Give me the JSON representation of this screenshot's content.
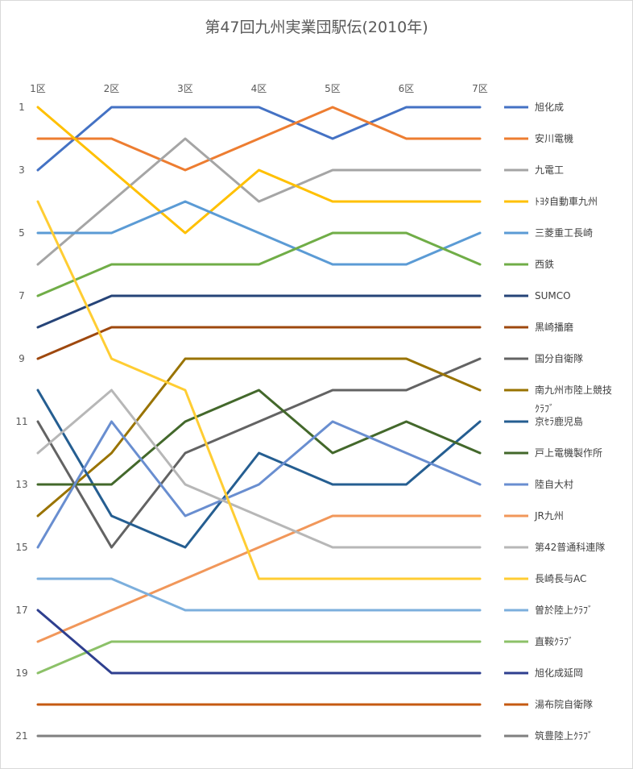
{
  "chart_data": {
    "type": "line",
    "title": "第47回九州実業団駅伝(2010年)",
    "x": [
      "1区",
      "2区",
      "3区",
      "4区",
      "5区",
      "6区",
      "7区"
    ],
    "y_ticks": [
      "1",
      "3",
      "5",
      "7",
      "9",
      "11",
      "13",
      "15",
      "17",
      "19",
      "21"
    ],
    "ylim": [
      1,
      21
    ],
    "y_reversed": true,
    "grid": false,
    "legend_position": "right",
    "series": [
      {
        "name": "旭化成",
        "color": "#4472C4",
        "values": [
          3,
          1,
          1,
          1,
          2,
          1,
          1
        ]
      },
      {
        "name": "安川電機",
        "color": "#ED7D31",
        "values": [
          2,
          2,
          3,
          2,
          1,
          2,
          2
        ]
      },
      {
        "name": "九電工",
        "color": "#A5A5A5",
        "values": [
          6,
          4,
          2,
          4,
          3,
          3,
          3
        ]
      },
      {
        "name": "ﾄﾖﾀ自動車九州",
        "color": "#FFC000",
        "values": [
          1,
          3,
          5,
          3,
          4,
          4,
          4
        ]
      },
      {
        "name": "三菱重工長崎",
        "color": "#5B9BD5",
        "values": [
          5,
          5,
          4,
          5,
          6,
          6,
          5
        ]
      },
      {
        "name": "西鉄",
        "color": "#70AD47",
        "values": [
          7,
          6,
          6,
          6,
          5,
          5,
          6
        ]
      },
      {
        "name": "SUMCO",
        "color": "#264478",
        "values": [
          8,
          7,
          7,
          7,
          7,
          7,
          7
        ]
      },
      {
        "name": "黒崎播磨",
        "color": "#9E480E",
        "values": [
          9,
          8,
          8,
          8,
          8,
          8,
          8
        ]
      },
      {
        "name": "国分自衛隊",
        "color": "#636363",
        "values": [
          11,
          15,
          12,
          11,
          10,
          10,
          9
        ]
      },
      {
        "name": "南九州市陸上競技",
        "color": "#997300",
        "values": [
          14,
          12,
          9,
          9,
          9,
          9,
          10
        ]
      },
      {
        "name": "京ｾﾗ鹿児島",
        "name_ruby": "ｸﾗﾌﾞ",
        "color": "#255E91",
        "values": [
          10,
          14,
          15,
          12,
          13,
          13,
          11
        ]
      },
      {
        "name": "戸上電機製作所",
        "color": "#43682B",
        "values": [
          13,
          13,
          11,
          10,
          12,
          11,
          12
        ]
      },
      {
        "name": "陸自大村",
        "color": "#698ED0",
        "values": [
          15,
          11,
          14,
          13,
          11,
          12,
          13
        ]
      },
      {
        "name": "JR九州",
        "color": "#F1975A",
        "values": [
          18,
          17,
          16,
          15,
          14,
          14,
          14
        ]
      },
      {
        "name": "第42普通科連隊",
        "color": "#B7B7B7",
        "values": [
          12,
          10,
          13,
          14,
          15,
          15,
          15
        ]
      },
      {
        "name": "長崎長与AC",
        "color": "#FFCD33",
        "values": [
          4,
          9,
          10,
          16,
          16,
          16,
          16
        ]
      },
      {
        "name": "曽於陸上ｸﾗﾌﾞ",
        "color": "#7CAFDD",
        "values": [
          16,
          16,
          17,
          17,
          17,
          17,
          17
        ]
      },
      {
        "name": "直鞍ｸﾗﾌﾞ",
        "color": "#8CC168",
        "values": [
          19,
          18,
          18,
          18,
          18,
          18,
          18
        ]
      },
      {
        "name": "旭化成延岡",
        "color": "#2E3F8F",
        "values": [
          17,
          19,
          19,
          19,
          19,
          19,
          19
        ]
      },
      {
        "name": "湯布院自衛隊",
        "color": "#C55A11",
        "values": [
          20,
          20,
          20,
          20,
          20,
          20,
          20
        ]
      },
      {
        "name": "筑豊陸上ｸﾗﾌﾞ",
        "color": "#7F7F7F",
        "values": [
          21,
          21,
          21,
          21,
          21,
          21,
          21
        ]
      }
    ]
  }
}
